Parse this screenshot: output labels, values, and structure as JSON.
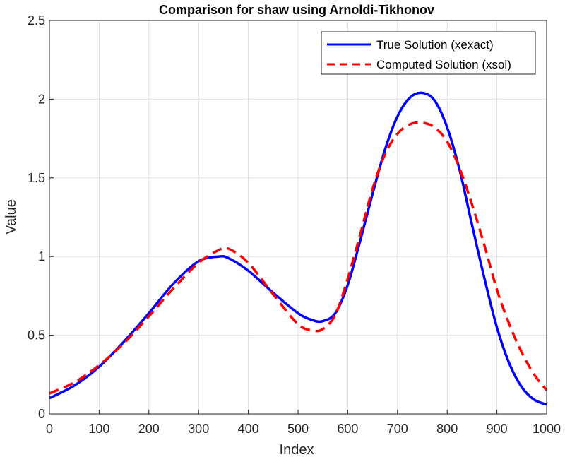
{
  "chart_data": {
    "type": "line",
    "title": "Comparison for shaw using Arnoldi-Tikhonov",
    "xlabel": "Index",
    "ylabel": "Value",
    "xlim": [
      0,
      1000
    ],
    "ylim": [
      0,
      2.5
    ],
    "x_ticks": [
      "0",
      "100",
      "200",
      "300",
      "400",
      "500",
      "600",
      "700",
      "800",
      "900",
      "1000"
    ],
    "y_ticks": [
      "0",
      "0.5",
      "1",
      "1.5",
      "2",
      "2.5"
    ],
    "grid": true,
    "legend_position": "top-right",
    "x": [
      0,
      50,
      100,
      150,
      200,
      250,
      300,
      340,
      360,
      400,
      450,
      500,
      530,
      550,
      575,
      600,
      625,
      650,
      675,
      700,
      725,
      750,
      775,
      800,
      825,
      850,
      875,
      900,
      925,
      950,
      975,
      1000
    ],
    "series": [
      {
        "name": "True Solution (xexact)",
        "color": "#0000ff",
        "style": "solid",
        "values": [
          0.1,
          0.18,
          0.3,
          0.46,
          0.64,
          0.83,
          0.97,
          1.0,
          0.99,
          0.91,
          0.77,
          0.64,
          0.595,
          0.59,
          0.64,
          0.82,
          1.1,
          1.4,
          1.68,
          1.89,
          2.01,
          2.04,
          1.99,
          1.82,
          1.55,
          1.2,
          0.86,
          0.55,
          0.32,
          0.17,
          0.09,
          0.06
        ]
      },
      {
        "name": "Computed Solution (xsol)",
        "color": "#ff0000",
        "style": "dashed",
        "values": [
          0.13,
          0.2,
          0.31,
          0.45,
          0.62,
          0.8,
          0.96,
          1.04,
          1.05,
          0.96,
          0.76,
          0.57,
          0.53,
          0.54,
          0.63,
          0.86,
          1.14,
          1.43,
          1.65,
          1.78,
          1.84,
          1.85,
          1.82,
          1.73,
          1.56,
          1.33,
          1.07,
          0.79,
          0.57,
          0.39,
          0.25,
          0.15
        ]
      }
    ]
  }
}
